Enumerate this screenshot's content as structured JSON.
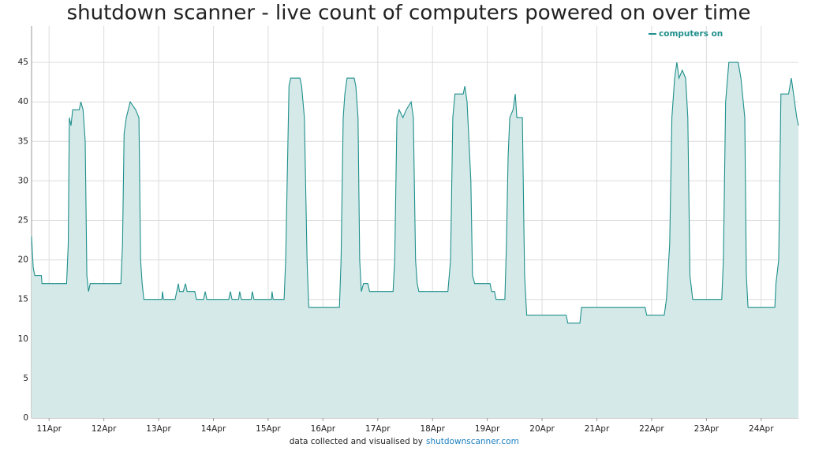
{
  "chart_data": {
    "type": "area",
    "title": "shutdown scanner - live count of computers powered on over time",
    "source_text": "data collected and visualised by",
    "source_link": "shutdownscanner.com",
    "legend_position": "top-right",
    "grid": true,
    "x": [
      10.68,
      10.71,
      10.74,
      10.86,
      10.87,
      11.32,
      11.35,
      11.37,
      11.4,
      11.43,
      11.55,
      11.58,
      11.62,
      11.66,
      11.69,
      11.72,
      11.75,
      12.31,
      12.34,
      12.37,
      12.41,
      12.48,
      12.58,
      12.64,
      12.67,
      12.7,
      12.73,
      13.06,
      13.07,
      13.09,
      13.3,
      13.33,
      13.36,
      13.38,
      13.45,
      13.49,
      13.52,
      13.66,
      13.69,
      13.82,
      13.85,
      13.88,
      14.28,
      14.31,
      14.34,
      14.46,
      14.48,
      14.51,
      14.69,
      14.71,
      14.74,
      15.06,
      15.07,
      15.09,
      15.29,
      15.32,
      15.38,
      15.41,
      15.58,
      15.61,
      15.66,
      15.71,
      15.74,
      16.3,
      16.33,
      16.37,
      16.4,
      16.44,
      16.57,
      16.6,
      16.64,
      16.67,
      16.7,
      16.74,
      16.82,
      16.85,
      17.28,
      17.31,
      17.35,
      17.39,
      17.46,
      17.52,
      17.61,
      17.65,
      17.69,
      17.72,
      17.75,
      18.28,
      18.33,
      18.37,
      18.41,
      18.56,
      18.59,
      18.63,
      18.7,
      18.73,
      18.77,
      19.05,
      19.08,
      19.13,
      19.16,
      19.32,
      19.35,
      19.38,
      19.41,
      19.47,
      19.51,
      19.54,
      19.64,
      19.68,
      19.72,
      20.44,
      20.47,
      20.69,
      20.72,
      21.88,
      21.91,
      22.23,
      22.27,
      22.33,
      22.37,
      22.42,
      22.46,
      22.5,
      22.56,
      22.62,
      22.66,
      22.7,
      22.75,
      23.28,
      23.31,
      23.35,
      23.41,
      23.58,
      23.63,
      23.7,
      23.73,
      23.76,
      24.25,
      24.27,
      24.32,
      24.36,
      24.5,
      24.55,
      24.59,
      24.65,
      24.68
    ],
    "series": [
      {
        "name": "computers on",
        "color": "#1f8f8c",
        "fill": "#d5eae8",
        "values": [
          23,
          19,
          18,
          18,
          17,
          17,
          22,
          38,
          37,
          39,
          39,
          40,
          39,
          35,
          18,
          16,
          17,
          17,
          22,
          36,
          38,
          40,
          39,
          38,
          20,
          17,
          15,
          15,
          16,
          15,
          15,
          16,
          17,
          16,
          16,
          17,
          16,
          16,
          15,
          15,
          16,
          15,
          15,
          16,
          15,
          15,
          16,
          15,
          15,
          16,
          15,
          15,
          16,
          15,
          15,
          20,
          42,
          43,
          43,
          42,
          38,
          20,
          14,
          14,
          20,
          38,
          41,
          43,
          43,
          42,
          38,
          20,
          16,
          17,
          17,
          16,
          16,
          20,
          38,
          39,
          38,
          39,
          40,
          38,
          20,
          17,
          16,
          16,
          20,
          38,
          41,
          41,
          42,
          40,
          30,
          18,
          17,
          17,
          16,
          16,
          15,
          15,
          22,
          33,
          38,
          39,
          41,
          38,
          38,
          18,
          13,
          13,
          12,
          12,
          14,
          14,
          13,
          13,
          15,
          22,
          38,
          43,
          45,
          43,
          44,
          43,
          38,
          18,
          15,
          15,
          20,
          40,
          45,
          45,
          43,
          38,
          18,
          14,
          14,
          17,
          20,
          41,
          41,
          43,
          41,
          38,
          37
        ]
      }
    ],
    "xlim": [
      10.68,
      24.68
    ],
    "xticks": [
      {
        "value": 11,
        "label": "11Apr"
      },
      {
        "value": 12,
        "label": "12Apr"
      },
      {
        "value": 13,
        "label": "13Apr"
      },
      {
        "value": 14,
        "label": "14Apr"
      },
      {
        "value": 15,
        "label": "15Apr"
      },
      {
        "value": 16,
        "label": "16Apr"
      },
      {
        "value": 17,
        "label": "17Apr"
      },
      {
        "value": 18,
        "label": "18Apr"
      },
      {
        "value": 19,
        "label": "19Apr"
      },
      {
        "value": 20,
        "label": "20Apr"
      },
      {
        "value": 21,
        "label": "21Apr"
      },
      {
        "value": 22,
        "label": "22Apr"
      },
      {
        "value": 23,
        "label": "23Apr"
      },
      {
        "value": 24,
        "label": "24Apr"
      }
    ],
    "ylim": [
      0,
      49.6
    ],
    "yticks": [
      0,
      5,
      10,
      15,
      20,
      25,
      30,
      35,
      40,
      45
    ]
  }
}
